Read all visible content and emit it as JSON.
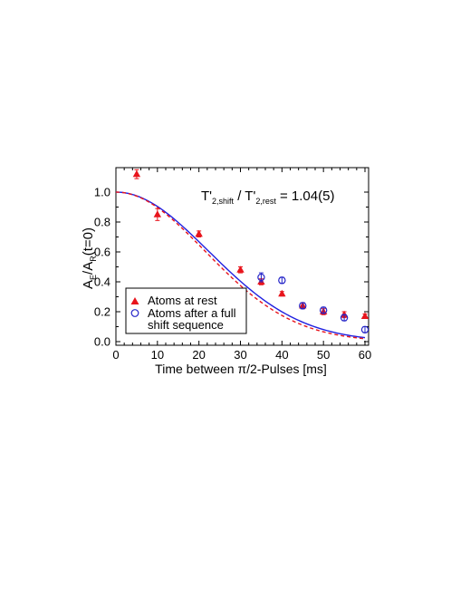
{
  "chart_data": {
    "type": "scatter",
    "xlabel": "Time between π/2-Pulses [ms]",
    "ylabel": {
      "main": "A",
      "sub1": "E",
      "mid": "/A",
      "sub2": "R",
      "end": "(t=0)"
    },
    "annotation": {
      "a": "T'",
      "a_sub": "2,shift",
      "b": " / T'",
      "b_sub": "2,rest",
      "c": " = 1.04(5)"
    },
    "xlim": [
      0,
      60
    ],
    "ylim": [
      -0.02,
      1.18
    ],
    "xticks": [
      0,
      10,
      20,
      30,
      40,
      50,
      60
    ],
    "yticks": [
      0.0,
      0.2,
      0.4,
      0.6,
      0.8,
      1.0
    ],
    "ytick_labels": [
      "0.0",
      "0.2",
      "0.4",
      "0.6",
      "0.8",
      "1.0"
    ],
    "grid": false,
    "legend_position": "bottom-left",
    "series": [
      {
        "name": "Atoms at rest",
        "marker": "filled-triangle",
        "color": "#e8141c",
        "x": [
          5,
          10,
          20,
          30,
          35,
          40,
          45,
          50,
          55,
          60
        ],
        "y": [
          1.12,
          0.85,
          0.72,
          0.48,
          0.4,
          0.32,
          0.24,
          0.2,
          0.18,
          0.17
        ],
        "err": [
          0.03,
          0.04,
          0.02,
          0.02,
          0.02,
          0.015,
          0.02,
          0.02,
          0.02,
          0.015
        ]
      },
      {
        "name": "Atoms after a full shift sequence",
        "legend_lines": [
          "Atoms after a full",
          "shift sequence"
        ],
        "marker": "open-circle",
        "color": "#2424c8",
        "x": [
          35,
          40,
          45,
          50,
          55,
          60
        ],
        "y": [
          0.43,
          0.41,
          0.24,
          0.21,
          0.16,
          0.08
        ],
        "err": [
          0.03,
          0.02,
          0.02,
          0.02,
          0.02,
          0.02
        ]
      }
    ],
    "fits": [
      {
        "style": "solid",
        "color": "#2020e0",
        "T2": 31.5
      },
      {
        "style": "dashed",
        "color": "#e8141c",
        "T2": 30.3
      }
    ]
  }
}
